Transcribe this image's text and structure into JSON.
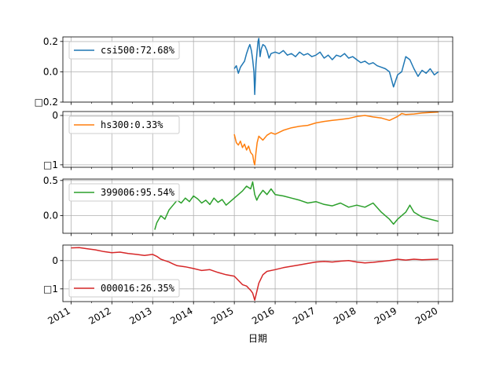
{
  "chart_data": {
    "type": "line",
    "xlabel": "日期",
    "x_ticks": [
      "2011",
      "2012",
      "2013",
      "2014",
      "2015",
      "2016",
      "2017",
      "2018",
      "2019",
      "2020"
    ],
    "xlim": [
      2010.8,
      2020.35
    ],
    "grid": true,
    "legend_placement": "upper-left",
    "panels": [
      {
        "name": "csi500:72.68%",
        "color": "#1f77b4",
        "ylim": [
          -0.2,
          0.23
        ],
        "yticks": [
          0.2,
          0.0,
          -0.2
        ],
        "ytick_labels": [
          "0.2",
          "0.0",
          "□0.2"
        ],
        "x": [
          2015.0,
          2015.05,
          2015.1,
          2015.15,
          2015.2,
          2015.25,
          2015.3,
          2015.35,
          2015.38,
          2015.42,
          2015.45,
          2015.48,
          2015.5,
          2015.53,
          2015.56,
          2015.58,
          2015.6,
          2015.63,
          2015.66,
          2015.7,
          2015.75,
          2015.8,
          2015.85,
          2015.9,
          2016.0,
          2016.1,
          2016.2,
          2016.3,
          2016.4,
          2016.5,
          2016.6,
          2016.7,
          2016.8,
          2016.9,
          2017.0,
          2017.1,
          2017.2,
          2017.3,
          2017.4,
          2017.5,
          2017.6,
          2017.7,
          2017.8,
          2017.9,
          2018.0,
          2018.1,
          2018.2,
          2018.3,
          2018.4,
          2018.5,
          2018.6,
          2018.7,
          2018.8,
          2018.85,
          2018.9,
          2019.0,
          2019.1,
          2019.2,
          2019.3,
          2019.4,
          2019.5,
          2019.6,
          2019.7,
          2019.8,
          2019.9,
          2020.0
        ],
        "values": [
          0.02,
          0.04,
          -0.01,
          0.03,
          0.05,
          0.07,
          0.12,
          0.16,
          0.18,
          0.14,
          0.08,
          0.0,
          -0.15,
          0.05,
          0.14,
          0.2,
          0.22,
          0.1,
          0.15,
          0.18,
          0.17,
          0.14,
          0.09,
          0.12,
          0.13,
          0.12,
          0.14,
          0.11,
          0.12,
          0.1,
          0.13,
          0.11,
          0.12,
          0.1,
          0.11,
          0.13,
          0.09,
          0.11,
          0.08,
          0.11,
          0.1,
          0.12,
          0.09,
          0.1,
          0.08,
          0.06,
          0.07,
          0.05,
          0.06,
          0.04,
          0.03,
          0.02,
          0.0,
          -0.05,
          -0.1,
          -0.02,
          0.0,
          0.1,
          0.08,
          0.02,
          -0.03,
          0.01,
          -0.01,
          0.02,
          -0.02,
          0.0
        ]
      },
      {
        "name": "hs300:0.33%",
        "color": "#ff7f0e",
        "ylim": [
          -1.05,
          0.08
        ],
        "yticks": [
          0.0,
          -1.0
        ],
        "ytick_labels": [
          "0",
          "□1"
        ],
        "x": [
          2015.0,
          2015.05,
          2015.1,
          2015.15,
          2015.2,
          2015.25,
          2015.3,
          2015.35,
          2015.4,
          2015.45,
          2015.48,
          2015.5,
          2015.53,
          2015.56,
          2015.6,
          2015.7,
          2015.8,
          2015.9,
          2016.0,
          2016.2,
          2016.4,
          2016.6,
          2016.8,
          2017.0,
          2017.2,
          2017.4,
          2017.6,
          2017.8,
          2018.0,
          2018.2,
          2018.4,
          2018.6,
          2018.8,
          2019.0,
          2019.1,
          2019.2,
          2019.4,
          2019.6,
          2019.8,
          2020.0
        ],
        "values": [
          -0.38,
          -0.55,
          -0.6,
          -0.52,
          -0.65,
          -0.58,
          -0.7,
          -0.62,
          -0.75,
          -0.8,
          -0.95,
          -1.0,
          -0.75,
          -0.55,
          -0.42,
          -0.5,
          -0.4,
          -0.35,
          -0.38,
          -0.3,
          -0.25,
          -0.22,
          -0.2,
          -0.15,
          -0.12,
          -0.1,
          -0.08,
          -0.06,
          -0.02,
          0.0,
          -0.03,
          -0.05,
          -0.1,
          -0.02,
          0.04,
          0.02,
          0.03,
          0.05,
          0.06,
          0.07
        ]
      },
      {
        "name": "399006:95.54%",
        "color": "#2ca02c",
        "ylim": [
          -0.25,
          0.52
        ],
        "yticks": [
          0.5,
          0.0
        ],
        "ytick_labels": [
          "0.5",
          "0.0"
        ],
        "x": [
          2013.05,
          2013.1,
          2013.2,
          2013.3,
          2013.4,
          2013.5,
          2013.6,
          2013.7,
          2013.8,
          2013.9,
          2014.0,
          2014.1,
          2014.2,
          2014.3,
          2014.4,
          2014.5,
          2014.6,
          2014.7,
          2014.8,
          2014.9,
          2015.0,
          2015.1,
          2015.2,
          2015.3,
          2015.4,
          2015.45,
          2015.5,
          2015.55,
          2015.6,
          2015.7,
          2015.8,
          2015.9,
          2016.0,
          2016.2,
          2016.4,
          2016.6,
          2016.8,
          2017.0,
          2017.2,
          2017.4,
          2017.6,
          2017.8,
          2018.0,
          2018.2,
          2018.4,
          2018.6,
          2018.8,
          2018.9,
          2019.0,
          2019.1,
          2019.2,
          2019.3,
          2019.4,
          2019.6,
          2019.8,
          2020.0
        ],
        "values": [
          -0.2,
          -0.1,
          0.0,
          -0.05,
          0.08,
          0.15,
          0.22,
          0.18,
          0.25,
          0.2,
          0.28,
          0.24,
          0.18,
          0.22,
          0.16,
          0.25,
          0.19,
          0.23,
          0.15,
          0.2,
          0.25,
          0.3,
          0.35,
          0.42,
          0.38,
          0.48,
          0.3,
          0.22,
          0.28,
          0.36,
          0.3,
          0.38,
          0.3,
          0.28,
          0.25,
          0.22,
          0.18,
          0.2,
          0.16,
          0.14,
          0.18,
          0.12,
          0.15,
          0.12,
          0.18,
          0.05,
          -0.05,
          -0.12,
          -0.05,
          0.0,
          0.05,
          0.15,
          0.05,
          -0.02,
          -0.05,
          -0.08
        ]
      },
      {
        "name": "000016:26.35%",
        "color": "#d62728",
        "ylim": [
          -1.45,
          0.55
        ],
        "yticks": [
          0.0,
          -1.0
        ],
        "ytick_labels": [
          "0",
          "□1"
        ],
        "x": [
          2011.0,
          2011.2,
          2011.4,
          2011.6,
          2011.8,
          2012.0,
          2012.2,
          2012.4,
          2012.6,
          2012.8,
          2013.0,
          2013.1,
          2013.2,
          2013.3,
          2013.4,
          2013.5,
          2013.6,
          2013.8,
          2014.0,
          2014.2,
          2014.4,
          2014.6,
          2014.8,
          2015.0,
          2015.1,
          2015.2,
          2015.3,
          2015.4,
          2015.45,
          2015.5,
          2015.55,
          2015.6,
          2015.7,
          2015.8,
          2016.0,
          2016.2,
          2016.4,
          2016.6,
          2016.8,
          2017.0,
          2017.2,
          2017.4,
          2017.6,
          2017.8,
          2018.0,
          2018.2,
          2018.4,
          2018.6,
          2018.8,
          2019.0,
          2019.2,
          2019.4,
          2019.6,
          2019.8,
          2020.0
        ],
        "values": [
          0.45,
          0.46,
          0.42,
          0.38,
          0.32,
          0.28,
          0.3,
          0.25,
          0.22,
          0.18,
          0.22,
          0.15,
          0.05,
          0.0,
          -0.05,
          -0.12,
          -0.18,
          -0.22,
          -0.28,
          -0.35,
          -0.32,
          -0.42,
          -0.5,
          -0.55,
          -0.7,
          -0.85,
          -0.9,
          -1.05,
          -1.15,
          -1.4,
          -1.1,
          -0.8,
          -0.5,
          -0.38,
          -0.32,
          -0.25,
          -0.2,
          -0.15,
          -0.1,
          -0.05,
          -0.03,
          -0.05,
          -0.02,
          0.0,
          -0.05,
          -0.08,
          -0.06,
          -0.03,
          0.0,
          0.05,
          0.02,
          0.05,
          0.03,
          0.04,
          0.05
        ]
      }
    ]
  }
}
